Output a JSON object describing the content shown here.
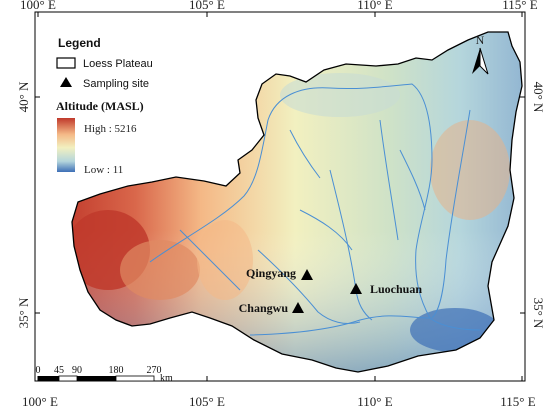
{
  "axes": {
    "top_ticks": [
      "100° E",
      "105° E",
      "110° E",
      "115° E"
    ],
    "bottom_ticks": [
      "100° E",
      "105° E",
      "110° E",
      "115° E"
    ],
    "left_ticks": [
      "40° N",
      "35° N"
    ],
    "right_ticks": [
      "40° N",
      "35° N"
    ]
  },
  "legend": {
    "title": "Legend",
    "boundary_label": "Loess Plateau",
    "site_label": "Sampling site",
    "altitude_title": "Altitude (MASL)",
    "high_label": "High : 5216",
    "low_label": "Low : 11"
  },
  "north_arrow": {
    "label": "N"
  },
  "sites": [
    {
      "name": "Qingyang",
      "lon": 107.6,
      "lat": 35.7
    },
    {
      "name": "Luochuan",
      "lon": 109.4,
      "lat": 35.3
    },
    {
      "name": "Changwu",
      "lon": 107.7,
      "lat": 35.2
    }
  ],
  "scale_bar": {
    "ticks": [
      "0",
      "45",
      "90",
      "180",
      "270"
    ],
    "unit": "km"
  },
  "colors": {
    "high": "#c0392b",
    "mid_high": "#f4b886",
    "mid": "#f2f0c0",
    "mid_low": "#b5d6dc",
    "low": "#3d6fb6",
    "river": "#4a8fd4",
    "boundary": "#000000"
  }
}
